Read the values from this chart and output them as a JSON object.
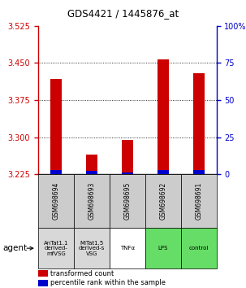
{
  "title": "GDS4421 / 1445876_at",
  "categories": [
    "GSM698694",
    "GSM698693",
    "GSM698695",
    "GSM698692",
    "GSM698691"
  ],
  "agent_labels": [
    "AnTat1.1\nderived-\nmfVSG",
    "MiTat1.5\nderived-s\nVSG",
    "TNFα",
    "LPS",
    "control"
  ],
  "agent_bg_colors": [
    "#d8d8d8",
    "#d8d8d8",
    "#ffffff",
    "#66dd66",
    "#66dd66"
  ],
  "red_tops": [
    3.418,
    3.265,
    3.295,
    3.458,
    3.43
  ],
  "blue_tops": [
    3.233,
    3.232,
    3.228,
    3.233,
    3.233
  ],
  "bar_base": 3.225,
  "ylim_left": [
    3.225,
    3.525
  ],
  "ylim_right": [
    0,
    100
  ],
  "yticks_left": [
    3.225,
    3.3,
    3.375,
    3.45,
    3.525
  ],
  "yticks_right": [
    0,
    25,
    50,
    75,
    100
  ],
  "ytick_right_labels": [
    "0",
    "25",
    "50",
    "75",
    "100%"
  ],
  "red_color": "#cc0000",
  "blue_color": "#0000cc",
  "gsm_box_color": "#cccccc",
  "legend_red": "transformed count",
  "legend_blue": "percentile rank within the sample"
}
